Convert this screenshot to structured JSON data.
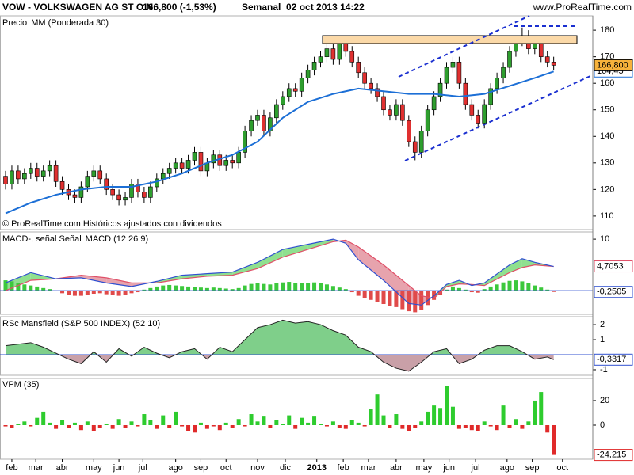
{
  "chart_data": [
    {
      "type": "candlestick",
      "title": "VOW - VOLKSWAGEN AG ST O.N.",
      "subtitle": "166,800 (-1,53%)",
      "period": "Semanal  02 oct 2013 14:22",
      "source": "www.ProRealTime.com",
      "label": "Precio",
      "annotation": "© ProRealTime.com Históricos ajustados con dividendos",
      "ylim": [
        104.9,
        185.4
      ],
      "yticks": [
        110,
        120,
        130,
        140,
        150,
        160,
        170,
        180
      ],
      "up_color": "#2e9e2e",
      "down_color": "#e03030",
      "label_fill": "#f7b23b",
      "open": [
        125,
        122,
        127,
        124,
        126,
        128,
        125,
        127,
        129,
        123,
        120,
        118,
        117,
        121,
        125,
        127,
        124,
        120,
        118,
        116,
        117,
        122,
        119,
        117,
        121,
        124,
        126,
        128,
        130,
        128,
        131,
        134,
        127,
        130,
        133,
        129,
        131,
        130,
        134,
        142,
        146,
        148,
        142,
        147,
        152,
        155,
        158,
        157,
        162,
        165,
        168,
        170,
        173,
        169,
        176,
        172,
        168,
        164,
        160,
        158,
        155,
        150,
        148,
        152,
        146,
        138,
        134,
        142,
        150,
        155,
        160,
        166,
        168,
        160,
        152,
        148,
        145,
        152,
        158,
        162,
        166,
        172,
        176,
        178,
        173,
        176,
        170,
        168
      ],
      "high": [
        127,
        129,
        129,
        128,
        130,
        130,
        129,
        131,
        131,
        125,
        122,
        120,
        123,
        127,
        129,
        129,
        126,
        122,
        120,
        119,
        124,
        124,
        121,
        123,
        126,
        128,
        130,
        132,
        132,
        133,
        136,
        136,
        132,
        135,
        135,
        133,
        133,
        136,
        144,
        148,
        150,
        150,
        149,
        154,
        157,
        160,
        160,
        164,
        167,
        170,
        172,
        175,
        175,
        178,
        178,
        174,
        170,
        166,
        162,
        160,
        157,
        152,
        154,
        154,
        148,
        140,
        144,
        152,
        157,
        162,
        168,
        170,
        170,
        162,
        154,
        150,
        154,
        160,
        164,
        168,
        174,
        178,
        181,
        180,
        178,
        178,
        172,
        170
      ],
      "low": [
        120,
        120,
        122,
        122,
        124,
        123,
        123,
        125,
        121,
        118,
        116,
        115,
        115,
        119,
        123,
        122,
        118,
        116,
        114,
        114,
        115,
        117,
        115,
        115,
        119,
        122,
        124,
        126,
        126,
        126,
        129,
        125,
        125,
        128,
        127,
        127,
        128,
        128,
        132,
        140,
        144,
        140,
        140,
        145,
        150,
        153,
        155,
        155,
        160,
        163,
        166,
        168,
        167,
        167,
        170,
        166,
        162,
        158,
        156,
        153,
        148,
        146,
        146,
        144,
        136,
        131,
        132,
        140,
        148,
        153,
        158,
        164,
        158,
        150,
        146,
        143,
        143,
        150,
        156,
        160,
        164,
        170,
        174,
        171,
        171,
        168,
        166,
        165
      ],
      "close": [
        122,
        127,
        124,
        126,
        128,
        125,
        127,
        129,
        123,
        120,
        118,
        117,
        121,
        125,
        127,
        124,
        120,
        118,
        116,
        117,
        122,
        119,
        117,
        121,
        124,
        126,
        128,
        130,
        128,
        131,
        134,
        127,
        130,
        133,
        129,
        131,
        130,
        134,
        142,
        146,
        148,
        142,
        147,
        152,
        155,
        158,
        157,
        162,
        165,
        168,
        170,
        173,
        169,
        176,
        172,
        168,
        164,
        160,
        158,
        155,
        150,
        148,
        152,
        146,
        138,
        134,
        142,
        150,
        155,
        160,
        166,
        168,
        160,
        152,
        148,
        145,
        152,
        158,
        162,
        166,
        172,
        176,
        178,
        173,
        176,
        170,
        168,
        166.8
      ],
      "value_labels": [
        null,
        null,
        null,
        null,
        null,
        null,
        null,
        null,
        null,
        null,
        null,
        null,
        null,
        null,
        null,
        null,
        null,
        null,
        null,
        null,
        null,
        null,
        null,
        null,
        null,
        null,
        null,
        null,
        null,
        null,
        null,
        null,
        null,
        null,
        null,
        null,
        null,
        null,
        null,
        null,
        null,
        null,
        null,
        null,
        null,
        null,
        null,
        null,
        null,
        null,
        null,
        null,
        null,
        null,
        null,
        null,
        null,
        null,
        null,
        null,
        null,
        null,
        null,
        null,
        null,
        null,
        null,
        null,
        null,
        null,
        null,
        null,
        null,
        null,
        null,
        null,
        null,
        null,
        null,
        null,
        null,
        null,
        null,
        null,
        null,
        null,
        null,
        "166,800"
      ],
      "series": [
        {
          "name": "MM (Ponderada 30)",
          "color": "#1c6fd6",
          "x": [
            0,
            4,
            8,
            12,
            16,
            20,
            24,
            28,
            32,
            36,
            40,
            44,
            48,
            52,
            56,
            60,
            64,
            68,
            72,
            76,
            80,
            84,
            87
          ],
          "values": [
            111,
            115,
            118,
            120,
            121,
            121,
            123,
            126,
            130,
            133,
            138,
            147,
            153,
            156,
            158,
            157,
            156,
            156,
            155,
            156,
            159,
            162,
            164.45
          ],
          "value_labels": [
            null,
            null,
            null,
            null,
            null,
            null,
            null,
            null,
            null,
            null,
            null,
            null,
            null,
            null,
            null,
            null,
            null,
            null,
            null,
            null,
            null,
            null,
            "164,45"
          ]
        }
      ]
    },
    {
      "type": "macd",
      "ylim": [
        -4.6,
        11.4
      ],
      "yticks": [
        10
      ],
      "up_color": "#3cc83c",
      "down_color": "#e04a4a",
      "bars": [
        2,
        1.8,
        1.5,
        1.2,
        1,
        0.8,
        0.5,
        0.3,
        0,
        -0.5,
        -0.8,
        -1,
        -1,
        -0.8,
        -0.6,
        -0.5,
        -0.7,
        -0.9,
        -1,
        -0.8,
        -0.5,
        -0.3,
        0.2,
        0.5,
        0.8,
        1,
        1.1,
        1,
        0.9,
        0.8,
        0.7,
        0.6,
        0.5,
        0.6,
        0.5,
        0.4,
        0.3,
        0.5,
        1,
        1.3,
        1.5,
        1.3,
        1.2,
        1.4,
        1.6,
        1.7,
        1.5,
        1.4,
        1.5,
        1.6,
        1.4,
        1.2,
        0.9,
        0.6,
        0.3,
        -0.3,
        -1,
        -1.5,
        -1.8,
        -2.2,
        -2.6,
        -3,
        -3.2,
        -3.6,
        -4,
        -4.2,
        -3.8,
        -2.8,
        -1.8,
        -0.8,
        0.2,
        0.8,
        0.5,
        0.2,
        -0.3,
        -0.4,
        0.3,
        0.8,
        1.2,
        1.6,
        1.9,
        2,
        1.8,
        1.4,
        1,
        0.6,
        0.2,
        -0.2505
      ],
      "bar_value_labels": [
        null,
        null,
        null,
        null,
        null,
        null,
        null,
        null,
        null,
        null,
        null,
        null,
        null,
        null,
        null,
        null,
        null,
        null,
        null,
        null,
        null,
        null,
        null,
        null,
        null,
        null,
        null,
        null,
        null,
        null,
        null,
        null,
        null,
        null,
        null,
        null,
        null,
        null,
        null,
        null,
        null,
        null,
        null,
        null,
        null,
        null,
        null,
        null,
        null,
        null,
        null,
        null,
        null,
        null,
        null,
        null,
        null,
        null,
        null,
        null,
        null,
        null,
        null,
        null,
        null,
        null,
        null,
        null,
        null,
        null,
        null,
        null,
        null,
        null,
        null,
        null,
        null,
        null,
        null,
        null,
        null,
        null,
        null,
        null,
        null,
        null,
        null,
        "-0,2505"
      ],
      "x": [
        0,
        4,
        8,
        12,
        16,
        20,
        24,
        28,
        32,
        36,
        40,
        44,
        48,
        52,
        54,
        56,
        60,
        64,
        66,
        68,
        70,
        72,
        74,
        76,
        80,
        82,
        84,
        87
      ],
      "series": [
        {
          "name": "MACD-, señal Señal",
          "color": "#e05068",
          "values": [
            0,
            2,
            2.3,
            3,
            2.5,
            1.5,
            1.5,
            2.3,
            2.8,
            3,
            4.3,
            6.5,
            8,
            9.5,
            9.8,
            8.5,
            5,
            1,
            -1,
            -1.5,
            0.8,
            1.3,
            1.2,
            1,
            3.5,
            4.5,
            5,
            4.7053
          ],
          "value_labels": [
            null,
            null,
            null,
            null,
            null,
            null,
            null,
            null,
            null,
            null,
            null,
            null,
            null,
            null,
            null,
            null,
            null,
            null,
            null,
            null,
            null,
            null,
            null,
            null,
            null,
            null,
            null,
            "4,7053"
          ]
        },
        {
          "name": "MACD (12 26 9)",
          "color": "#3050d0",
          "values": [
            1.5,
            3.5,
            2.3,
            2.5,
            1.5,
            0.8,
            1.8,
            3,
            3.3,
            3.6,
            5.5,
            8,
            9,
            10,
            9.2,
            6,
            2,
            -2.5,
            -2.8,
            -1,
            1.2,
            2,
            1,
            1.5,
            5,
            6.2,
            5.5,
            4.7
          ]
        }
      ]
    },
    {
      "type": "area",
      "title": "RSc Mansfield (S&P 500 INDEX) (52 10)",
      "ylim": [
        -1.37,
        2.53
      ],
      "yticks": [
        2,
        1,
        -1
      ],
      "up_color": "#7fcf8a",
      "down_color": "#c9a0a8",
      "line_color": "#222222",
      "zero_color": "#3050d0",
      "series": [
        {
          "name": "RSc Mansfield",
          "color": "#3050d0",
          "x": [
            0,
            4,
            6,
            8,
            10,
            12,
            14,
            16,
            18,
            20,
            22,
            24,
            26,
            28,
            30,
            32,
            34,
            36,
            38,
            40,
            42,
            44,
            46,
            48,
            50,
            52,
            54,
            56,
            58,
            60,
            62,
            64,
            66,
            68,
            70,
            72,
            74,
            76,
            78,
            80,
            82,
            84,
            86,
            87
          ],
          "values": [
            0.6,
            0.8,
            0.5,
            0.1,
            -0.3,
            -0.6,
            0.2,
            -0.5,
            0.4,
            -0.1,
            0.5,
            0.1,
            -0.2,
            0.2,
            0.4,
            -0.3,
            0.5,
            0.2,
            1,
            1.8,
            2,
            2.3,
            2.1,
            2.2,
            2,
            1.6,
            1.3,
            0.5,
            0.2,
            -0.5,
            -0.9,
            -1.1,
            -0.5,
            0.2,
            0.4,
            -0.6,
            -0.3,
            0.3,
            0.6,
            0.6,
            0.2,
            -0.3,
            -0.15,
            -0.3317
          ],
          "value_labels": [
            null,
            null,
            null,
            null,
            null,
            null,
            null,
            null,
            null,
            null,
            null,
            null,
            null,
            null,
            null,
            null,
            null,
            null,
            null,
            null,
            null,
            null,
            null,
            null,
            null,
            null,
            null,
            null,
            null,
            null,
            null,
            null,
            null,
            null,
            null,
            null,
            null,
            null,
            null,
            null,
            null,
            null,
            null,
            "-0,3317"
          ]
        }
      ]
    },
    {
      "type": "bar",
      "title": "VPM (35)",
      "title_color": "#e03030",
      "ylim": [
        -27.7,
        38
      ],
      "yticks": [
        20,
        0
      ],
      "up_color": "#2ecc2e",
      "down_color": "#e02a2a",
      "values": [
        -1,
        -2,
        1,
        3,
        -1,
        6,
        11,
        2,
        -3,
        4,
        -2,
        2,
        -4,
        3,
        -5,
        -2,
        1,
        -3,
        5,
        -2,
        3,
        -1,
        9,
        4,
        -3,
        8,
        -2,
        11,
        -1,
        -5,
        -6,
        2,
        -3,
        -1,
        -4,
        2,
        -2,
        5,
        -1,
        9,
        3,
        7,
        -2,
        4,
        1,
        8,
        -3,
        6,
        2,
        7,
        1,
        -1,
        3,
        -2,
        -3,
        4,
        2,
        -1,
        13,
        25,
        8,
        -2,
        9,
        -3,
        -5,
        -2,
        3,
        11,
        16,
        14,
        32,
        15,
        -3,
        -2,
        -4,
        -5,
        3,
        -1,
        -4,
        16,
        -2,
        5,
        -3,
        3,
        20,
        27,
        -6,
        -24.215
      ],
      "value_labels": [
        null,
        null,
        null,
        null,
        null,
        null,
        null,
        null,
        null,
        null,
        null,
        null,
        null,
        null,
        null,
        null,
        null,
        null,
        null,
        null,
        null,
        null,
        null,
        null,
        null,
        null,
        null,
        null,
        null,
        null,
        null,
        null,
        null,
        null,
        null,
        null,
        null,
        null,
        null,
        null,
        null,
        null,
        null,
        null,
        null,
        null,
        null,
        null,
        null,
        null,
        null,
        null,
        null,
        null,
        null,
        null,
        null,
        null,
        null,
        null,
        null,
        null,
        null,
        null,
        null,
        null,
        null,
        null,
        null,
        null,
        null,
        null,
        null,
        null,
        null,
        null,
        null,
        null,
        null,
        null,
        null,
        null,
        null,
        null,
        null,
        null,
        null,
        "-24,215"
      ],
      "xticks": [
        {
          "value": 1,
          "label": "feb"
        },
        {
          "value": 4.8,
          "label": "mar"
        },
        {
          "value": 9,
          "label": "abr"
        },
        {
          "value": 14,
          "label": "may"
        },
        {
          "value": 18,
          "label": "jun"
        },
        {
          "value": 21.8,
          "label": "jul"
        },
        {
          "value": 27,
          "label": "ago"
        },
        {
          "value": 31,
          "label": "sep"
        },
        {
          "value": 35,
          "label": "oct"
        },
        {
          "value": 40,
          "label": "nov"
        },
        {
          "value": 44.4,
          "label": "dic"
        },
        {
          "value": 49.4,
          "label": "2013"
        },
        {
          "value": 53.6,
          "label": "feb"
        },
        {
          "value": 57.6,
          "label": "mar"
        },
        {
          "value": 62,
          "label": "abr"
        },
        {
          "value": 66.4,
          "label": "may"
        },
        {
          "value": 70.4,
          "label": "jun"
        },
        {
          "value": 74.6,
          "label": "jul"
        },
        {
          "value": 79.6,
          "label": "ago"
        },
        {
          "value": 83.6,
          "label": "sep"
        },
        {
          "value": 88.4,
          "label": "oct"
        }
      ]
    }
  ]
}
